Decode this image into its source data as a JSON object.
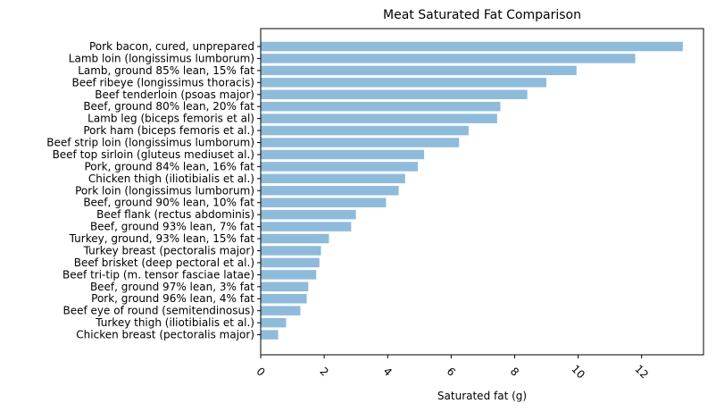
{
  "chart_data": {
    "type": "bar",
    "orientation": "horizontal",
    "title": "Meat Saturated Fat Comparison",
    "xlabel": "Saturated fat (g)",
    "ylabel": "",
    "xlim": [
      0,
      13.95
    ],
    "xticks": [
      0,
      2,
      4,
      6,
      8,
      10,
      12
    ],
    "grid": false,
    "bar_color": "#8fbbdb",
    "categories": [
      "Pork bacon, cured, unprepared",
      "Lamb loin (longissimus lumborum)",
      "Lamb, ground 85% lean, 15% fat",
      "Beef ribeye (longissimus thoracis)",
      "Beef tenderloin (psoas major)",
      "Beef, ground 80% lean, 20% fat",
      "Lamb leg (biceps femoris et al)",
      "Pork ham (biceps femoris et al.)",
      "Beef strip loin (longissimus lumborum)",
      "Beef top sirloin (gluteus mediuset al.)",
      "Pork, ground 84% lean, 16% fat",
      "Chicken thigh (iliotibialis et al.)",
      "Pork loin (longissimus lumborum)",
      "Beef, ground 90% lean, 10% fat",
      "Beef flank (rectus abdominis)",
      "Beef, ground 93% lean, 7% fat",
      "Turkey, ground, 93% lean, 15% fat",
      "Turkey breast (pectoralis major)",
      "Beef brisket (deep pectoral et al.)",
      "Beef tri-tip (m. tensor fasciae latae)",
      "Beef, ground 97% lean, 3% fat",
      "Pork, ground 96% lean, 4% fat",
      "Beef eye of round (semitendinosus)",
      "Turkey thigh (iliotibialis et al.)",
      "Chicken breast (pectoralis major)"
    ],
    "values": [
      13.3,
      11.8,
      9.95,
      9.0,
      8.4,
      7.55,
      7.45,
      6.55,
      6.25,
      5.15,
      4.95,
      4.55,
      4.35,
      3.95,
      3.0,
      2.85,
      2.15,
      1.9,
      1.85,
      1.75,
      1.5,
      1.45,
      1.25,
      0.8,
      0.55
    ]
  }
}
